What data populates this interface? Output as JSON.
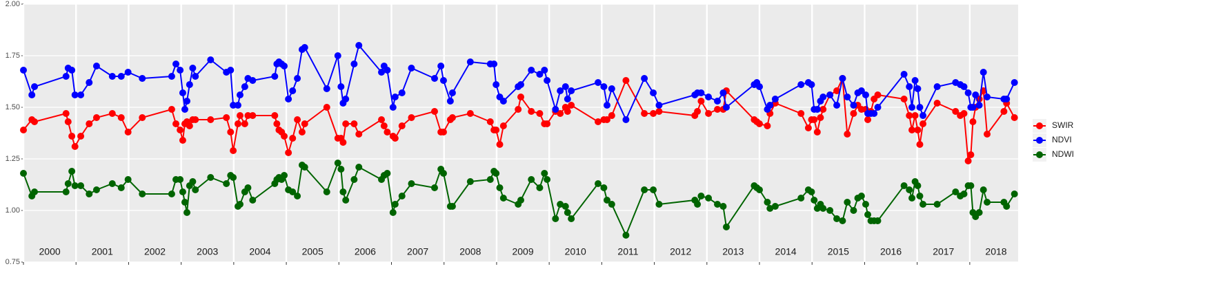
{
  "chart_data": {
    "type": "line",
    "x": [
      2000.0,
      2000.16,
      2000.21,
      2000.81,
      2000.85,
      2000.92,
      2000.98,
      2001.09,
      2001.25,
      2001.39,
      2001.69,
      2001.86,
      2001.99,
      2002.26,
      2002.82,
      2002.9,
      2002.98,
      2003.03,
      2003.07,
      2003.11,
      2003.16,
      2003.22,
      2003.27,
      2003.56,
      2003.86,
      2003.94,
      2003.99,
      2004.08,
      2004.12,
      2004.21,
      2004.27,
      2004.36,
      2004.78,
      2004.82,
      2004.86,
      2004.91,
      2004.96,
      2005.04,
      2005.12,
      2005.21,
      2005.3,
      2005.35,
      2005.77,
      2005.98,
      2006.04,
      2006.08,
      2006.13,
      2006.29,
      2006.38,
      2006.81,
      2006.86,
      2006.92,
      2007.03,
      2007.07,
      2007.2,
      2007.38,
      2007.82,
      2007.94,
      2007.99,
      2008.12,
      2008.16,
      2008.5,
      2008.88,
      2008.95,
      2008.99,
      2009.06,
      2009.13,
      2009.41,
      2009.46,
      2009.66,
      2009.82,
      2009.91,
      2009.96,
      2010.12,
      2010.21,
      2010.31,
      2010.35,
      2010.42,
      2010.93,
      2011.04,
      2011.1,
      2011.19,
      2011.46,
      2011.81,
      2011.98,
      2012.09,
      2012.77,
      2012.82,
      2012.89,
      2013.03,
      2013.2,
      2013.31,
      2013.37,
      2013.9,
      2013.95,
      2014.0,
      2014.15,
      2014.2,
      2014.3,
      2014.79,
      2014.93,
      2014.99,
      2015.04,
      2015.1,
      2015.16,
      2015.21,
      2015.34,
      2015.47,
      2015.58,
      2015.67,
      2015.79,
      2015.87,
      2015.94,
      2016.02,
      2016.06,
      2016.12,
      2016.18,
      2016.25,
      2016.75,
      2016.85,
      2016.9,
      2016.96,
      2017.01,
      2017.05,
      2017.11,
      2017.38,
      2017.73,
      2017.82,
      2017.89,
      2017.97,
      2018.02,
      2018.06,
      2018.11,
      2018.18,
      2018.26,
      2018.33,
      2018.65,
      2018.7,
      2018.85
    ],
    "series": [
      {
        "name": "SWIR",
        "color": "#ff0000",
        "values": [
          1.39,
          1.44,
          1.43,
          1.47,
          1.43,
          1.36,
          1.31,
          1.36,
          1.42,
          1.45,
          1.47,
          1.45,
          1.38,
          1.45,
          1.49,
          1.42,
          1.39,
          1.34,
          1.42,
          1.43,
          1.41,
          1.44,
          1.44,
          1.44,
          1.45,
          1.38,
          1.29,
          1.42,
          1.46,
          1.42,
          1.46,
          1.46,
          1.46,
          1.42,
          1.39,
          1.38,
          1.36,
          1.28,
          1.35,
          1.44,
          1.38,
          1.42,
          1.5,
          1.35,
          1.35,
          1.33,
          1.42,
          1.42,
          1.37,
          1.44,
          1.41,
          1.38,
          1.36,
          1.35,
          1.41,
          1.45,
          1.48,
          1.38,
          1.38,
          1.44,
          1.45,
          1.47,
          1.43,
          1.39,
          1.39,
          1.32,
          1.41,
          1.49,
          1.55,
          1.48,
          1.47,
          1.42,
          1.42,
          1.48,
          1.47,
          1.5,
          1.48,
          1.51,
          1.43,
          1.44,
          1.44,
          1.46,
          1.63,
          1.47,
          1.47,
          1.48,
          1.46,
          1.48,
          1.53,
          1.47,
          1.49,
          1.49,
          1.58,
          1.44,
          1.43,
          1.42,
          1.41,
          1.47,
          1.52,
          1.47,
          1.4,
          1.44,
          1.44,
          1.38,
          1.45,
          1.49,
          1.56,
          1.58,
          1.64,
          1.37,
          1.47,
          1.51,
          1.49,
          1.49,
          1.44,
          1.48,
          1.54,
          1.56,
          1.54,
          1.46,
          1.39,
          1.46,
          1.39,
          1.32,
          1.42,
          1.52,
          1.48,
          1.46,
          1.47,
          1.24,
          1.27,
          1.43,
          1.5,
          1.54,
          1.58,
          1.37,
          1.48,
          1.52,
          1.45
        ]
      },
      {
        "name": "NDVI",
        "color": "#0000ff",
        "values": [
          1.68,
          1.56,
          1.6,
          1.65,
          1.69,
          1.68,
          1.56,
          1.56,
          1.62,
          1.7,
          1.65,
          1.65,
          1.67,
          1.64,
          1.65,
          1.71,
          1.68,
          1.57,
          1.49,
          1.53,
          1.61,
          1.69,
          1.65,
          1.73,
          1.67,
          1.68,
          1.51,
          1.51,
          1.56,
          1.6,
          1.64,
          1.63,
          1.65,
          1.71,
          1.72,
          1.71,
          1.7,
          1.54,
          1.58,
          1.64,
          1.78,
          1.79,
          1.59,
          1.75,
          1.6,
          1.52,
          1.54,
          1.71,
          1.8,
          1.67,
          1.7,
          1.68,
          1.5,
          1.55,
          1.57,
          1.69,
          1.64,
          1.7,
          1.63,
          1.53,
          1.57,
          1.72,
          1.71,
          1.71,
          1.61,
          1.55,
          1.53,
          1.6,
          1.61,
          1.68,
          1.66,
          1.68,
          1.63,
          1.49,
          1.58,
          1.6,
          1.54,
          1.58,
          1.62,
          1.6,
          1.51,
          1.59,
          1.44,
          1.64,
          1.57,
          1.51,
          1.56,
          1.57,
          1.57,
          1.55,
          1.53,
          1.57,
          1.5,
          1.61,
          1.62,
          1.6,
          1.49,
          1.51,
          1.54,
          1.61,
          1.62,
          1.61,
          1.49,
          1.49,
          1.53,
          1.55,
          1.56,
          1.51,
          1.64,
          1.55,
          1.51,
          1.57,
          1.58,
          1.56,
          1.47,
          1.47,
          1.47,
          1.5,
          1.66,
          1.6,
          1.5,
          1.63,
          1.59,
          1.5,
          1.46,
          1.6,
          1.62,
          1.61,
          1.6,
          1.57,
          1.5,
          1.5,
          1.56,
          1.51,
          1.67,
          1.55,
          1.54,
          1.54,
          1.62
        ]
      },
      {
        "name": "NDWI",
        "color": "#006400",
        "values": [
          1.18,
          1.07,
          1.09,
          1.09,
          1.13,
          1.19,
          1.12,
          1.12,
          1.08,
          1.1,
          1.13,
          1.11,
          1.15,
          1.08,
          1.08,
          1.15,
          1.15,
          1.09,
          1.04,
          0.99,
          1.12,
          1.14,
          1.1,
          1.16,
          1.13,
          1.17,
          1.16,
          1.02,
          1.03,
          1.09,
          1.11,
          1.05,
          1.13,
          1.15,
          1.16,
          1.15,
          1.17,
          1.1,
          1.09,
          1.07,
          1.22,
          1.21,
          1.09,
          1.23,
          1.2,
          1.09,
          1.05,
          1.15,
          1.21,
          1.15,
          1.17,
          1.18,
          0.99,
          1.03,
          1.07,
          1.13,
          1.11,
          1.2,
          1.18,
          1.02,
          1.02,
          1.14,
          1.15,
          1.19,
          1.18,
          1.11,
          1.06,
          1.03,
          1.05,
          1.15,
          1.11,
          1.18,
          1.15,
          0.96,
          1.03,
          1.02,
          0.99,
          0.96,
          1.13,
          1.11,
          1.05,
          1.03,
          0.88,
          1.1,
          1.1,
          1.03,
          1.05,
          1.03,
          1.07,
          1.06,
          1.03,
          1.02,
          0.92,
          1.12,
          1.11,
          1.1,
          1.04,
          1.01,
          1.02,
          1.06,
          1.1,
          1.09,
          1.05,
          1.01,
          1.03,
          1.01,
          1.0,
          0.96,
          0.95,
          1.04,
          1.0,
          1.06,
          1.07,
          1.03,
          0.98,
          0.95,
          0.95,
          0.95,
          1.12,
          1.1,
          1.06,
          1.14,
          1.12,
          1.07,
          1.03,
          1.03,
          1.09,
          1.07,
          1.08,
          1.12,
          1.12,
          0.99,
          0.97,
          0.99,
          1.1,
          1.04,
          1.04,
          1.02,
          1.08
        ]
      }
    ],
    "xlim": [
      2000,
      2018.92
    ],
    "xticks": [
      2000,
      2001,
      2002,
      2003,
      2004,
      2005,
      2006,
      2007,
      2008,
      2009,
      2010,
      2011,
      2012,
      2013,
      2014,
      2015,
      2016,
      2017,
      2018
    ],
    "ylim": [
      0.75,
      2.0
    ],
    "yticks": [
      0.75,
      {
        "value": 1,
        "label": "1.00"
      },
      1.25,
      {
        "value": 1.5,
        "label": "1.50"
      },
      1.75,
      {
        "value": 2,
        "label": "2.00"
      }
    ],
    "grid": true,
    "legend": "right"
  }
}
